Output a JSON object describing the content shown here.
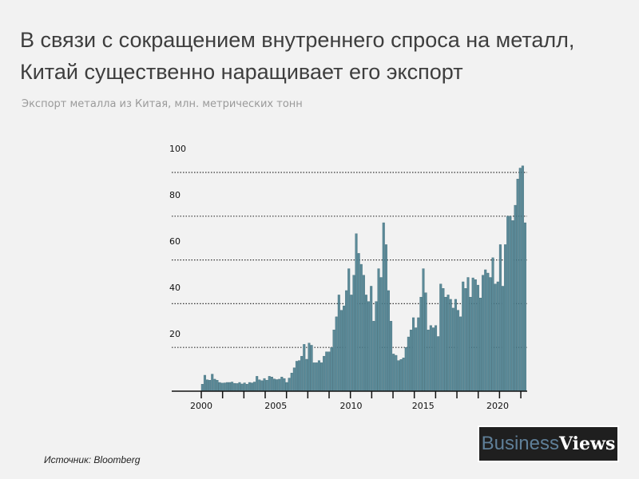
{
  "header": {
    "title_line1": "В связи с сокращением внутреннего спроса на металл,",
    "title_line2": "Китай существенно наращивает его экспорт",
    "subtitle": "Экспорт металла из Китая, млн. метрических тонн"
  },
  "footer": {
    "source": "Источник: Bloomberg",
    "logo_part1": "Business",
    "logo_part2": "Views"
  },
  "colors": {
    "bar": "#5b8a98",
    "bar_edge": "#3f6b78",
    "background": "#f2f2f2",
    "grid": "#333333"
  },
  "chart_data": {
    "type": "bar",
    "title": "Экспорт металла из Китая, млн. метрических тонн",
    "xlabel": "",
    "ylabel": "",
    "x_start": 2000,
    "x_step_years": 0.1667,
    "values": [
      3.2,
      7.3,
      5.2,
      5.0,
      7.8,
      5.5,
      5.0,
      4.0,
      3.7,
      3.8,
      4.0,
      4.0,
      4.2,
      3.6,
      3.5,
      4.0,
      3.3,
      3.8,
      3.2,
      4.0,
      3.8,
      4.2,
      6.8,
      5.2,
      4.8,
      5.8,
      5.0,
      6.8,
      6.5,
      5.6,
      5.3,
      5.5,
      6.5,
      5.8,
      4.0,
      6.0,
      8.3,
      10.7,
      13.7,
      14.0,
      16.0,
      21.4,
      14.6,
      22.0,
      21.0,
      13.0,
      13.0,
      14.0,
      13.0,
      16.0,
      18.0,
      18.0,
      20.0,
      28.0,
      34.0,
      44.0,
      37.0,
      39.0,
      46.0,
      56.0,
      44.0,
      53.0,
      72.0,
      63.0,
      58.0,
      53.0,
      44.0,
      41.0,
      48.0,
      32.0,
      41.0,
      56.0,
      52.0,
      77.0,
      67.0,
      46.0,
      32.0,
      17.0,
      16.4,
      14.0,
      14.5,
      15.2,
      20.0,
      24.8,
      28.0,
      33.6,
      29.0,
      33.6,
      43.0,
      56.0,
      45.0,
      28.0,
      30.0,
      29.0,
      30.0,
      25.0,
      49.0,
      47.0,
      43.0,
      44.0,
      42.0,
      38.0,
      42.0,
      37.0,
      34.0,
      50.0,
      47.0,
      52.0,
      43.0,
      51.8,
      51.0,
      48.5,
      42.6,
      53.0,
      55.5,
      54.0,
      52.0,
      61.0,
      49.0,
      50.0,
      67.0,
      48.0,
      67.0,
      80.0,
      80.0,
      78.0,
      85.0,
      97.0,
      102.0,
      103.0,
      77.0
    ],
    "xticks": [
      "2000",
      "2005",
      "2010",
      "2015",
      "2020"
    ],
    "yticks": [
      "20",
      "40",
      "60",
      "80",
      "100"
    ],
    "ylim": [
      0,
      100
    ],
    "xlim": [
      2000,
      2021.8
    ],
    "grid": "horizontal dotted",
    "legend": "none"
  }
}
